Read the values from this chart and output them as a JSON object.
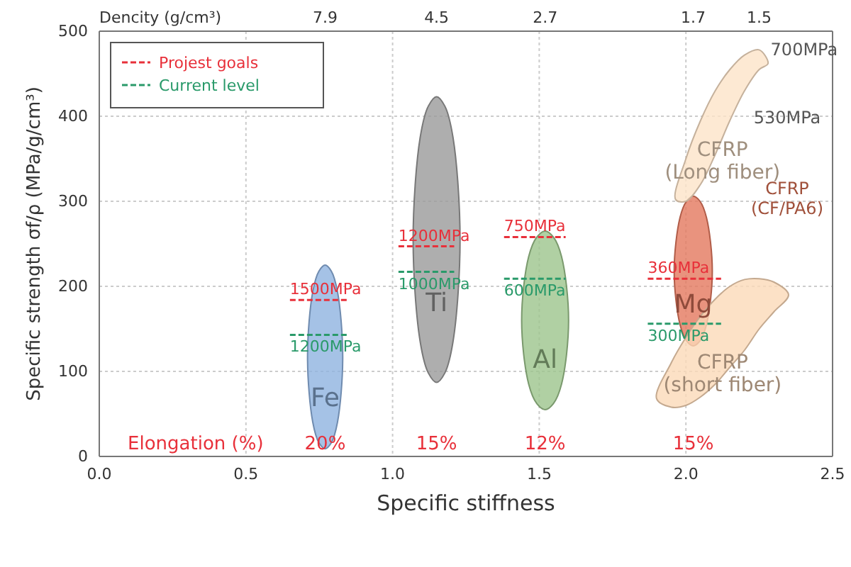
{
  "chart_data": {
    "type": "line",
    "xlabel": "Specific stiffness",
    "ylabel": "Specific strength  σf/ρ (MPa/g/cm³)",
    "x2label": "Dencity  (g/cm³)",
    "xlim": [
      0,
      2.5
    ],
    "xticks": [
      {
        "value": 0,
        "label": "0.0"
      },
      0.5,
      {
        "value": 1,
        "label": "1.0"
      },
      1.5,
      {
        "value": 2,
        "label": "2.0"
      },
      2.5
    ],
    "ylim": [
      0,
      500
    ],
    "yticks": [
      0,
      100,
      200,
      300,
      400,
      500
    ],
    "grid": true,
    "legend": "top left",
    "series": [
      {
        "name": "Fe",
        "type": "area",
        "color": "#8fb3e0",
        "x": [
          0.71,
          0.728,
          0.749,
          0.77,
          0.791,
          0.812,
          0.83,
          0.812,
          0.791,
          0.77,
          0.749,
          0.728
        ],
        "values": [
          117,
          194,
          218,
          225,
          218,
          194,
          117,
          40,
          16,
          9,
          16,
          40
        ]
      },
      {
        "name": "Ti",
        "type": "area",
        "color": "#9a9a9a",
        "x": [
          1.07,
          1.094,
          1.122,
          1.15,
          1.178,
          1.206,
          1.23,
          1.206,
          1.178,
          1.15,
          1.122,
          1.094
        ],
        "values": [
          255,
          375,
          412,
          423,
          412,
          375,
          255,
          135,
          98,
          87,
          98,
          135
        ]
      },
      {
        "name": "Al",
        "type": "area",
        "color": "#9cc48c",
        "x": [
          1.44,
          1.464,
          1.492,
          1.52,
          1.548,
          1.576,
          1.6,
          1.576,
          1.548,
          1.52,
          1.492,
          1.464
        ],
        "values": [
          160,
          235,
          258,
          265,
          258,
          235,
          160,
          85,
          62,
          55,
          62,
          85
        ]
      },
      {
        "name": "Mg",
        "type": "area",
        "color": "#e3785e",
        "x": [
          1.96,
          1.98,
          2.002,
          2.025,
          2.048,
          2.07,
          2.09,
          2.07,
          2.048,
          2.025,
          2.002,
          1.98
        ],
        "values": [
          218,
          281,
          300,
          306,
          300,
          281,
          218,
          155,
          136,
          130,
          136,
          155
        ]
      },
      {
        "name": "CFRP\n(Long fiber)",
        "type": "area",
        "color": "#fde3c8",
        "x": [
          1.965,
          2.0,
          2.05,
          2.1,
          2.15,
          2.2,
          2.25,
          2.28,
          2.25,
          2.2,
          2.15,
          2.1,
          2.05,
          2.0
        ],
        "values": [
          302,
          350,
          395,
          430,
          455,
          472,
          478,
          462,
          455,
          430,
          395,
          355,
          320,
          300
        ]
      },
      {
        "name": "CFRP\n(short fiber)",
        "type": "area",
        "color": "#fbd9b8",
        "x": [
          1.9,
          1.95,
          2.0,
          2.05,
          2.1,
          2.15,
          2.2,
          2.25,
          2.3,
          2.35,
          2.3,
          2.25,
          2.2,
          2.15,
          2.1,
          2.05,
          2.0,
          1.95
        ],
        "values": [
          68,
          110,
          140,
          165,
          185,
          200,
          208,
          209,
          205,
          190,
          170,
          150,
          125,
          105,
          85,
          70,
          60,
          58
        ]
      },
      {
        "name": "Projest goals",
        "line_style": "dashed",
        "color": "#e8303a",
        "x": [
          0.65,
          0.85,
          null,
          1.02,
          1.21,
          null,
          1.38,
          1.59,
          null,
          1.87,
          2.12
        ],
        "values": [
          184,
          184,
          null,
          247,
          247,
          null,
          258,
          258,
          null,
          209,
          209
        ]
      },
      {
        "name": "Current level",
        "line_style": "dashed",
        "color": "#2a9a6a",
        "x": [
          0.65,
          0.85,
          null,
          1.02,
          1.21,
          null,
          1.38,
          1.59,
          null,
          1.87,
          2.12
        ],
        "values": [
          143,
          143,
          null,
          217,
          217,
          null,
          209,
          209,
          null,
          156,
          156
        ]
      }
    ],
    "annotations": [
      "7.9",
      "4.5",
      "2.7",
      "1.7",
      "1.5",
      "Elongation (%)",
      "20%",
      "15%",
      "12%",
      "15%",
      "530MPa",
      "CFRP\n(CF/PA6)",
      {
        "text": "700MPa",
        "x": 2.25,
        "y": 478
      },
      {
        "text": "1500MPa",
        "x": 0.65,
        "y": 184
      },
      {
        "text": "1200MPa",
        "x": 1.02,
        "y": 247
      },
      {
        "text": "750MPa",
        "x": 1.38,
        "y": 258
      },
      {
        "text": "360MPa",
        "x": 1.87,
        "y": 209
      },
      {
        "text": "1200MPa",
        "x": 0.65,
        "y": 143
      },
      {
        "text": "1000MPa",
        "x": 1.02,
        "y": 217
      },
      {
        "text": "600MPa",
        "x": 1.38,
        "y": 209
      },
      {
        "text": "300MPa",
        "x": 1.87,
        "y": 156
      }
    ]
  }
}
